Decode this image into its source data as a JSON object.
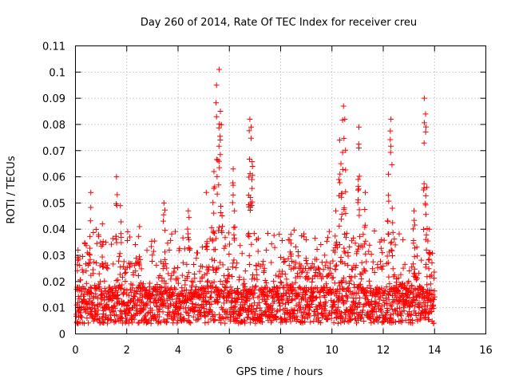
{
  "chart_data": {
    "type": "scatter",
    "title": "Day 260 of 2014, Rate Of TEC Index for receiver creu",
    "xlabel": "GPS time / hours",
    "ylabel": "ROTI / TECUs",
    "xlim": [
      0,
      16
    ],
    "ylim": [
      0,
      0.11
    ],
    "xticks": [
      "0",
      "2",
      "4",
      "6",
      "8",
      "10",
      "12",
      "14",
      "16"
    ],
    "yticks": [
      "0",
      "0.01",
      "0.02",
      "0.03",
      "0.04",
      "0.05",
      "0.06",
      "0.07",
      "0.08",
      "0.09",
      "0.1",
      "0.11"
    ],
    "grid": true,
    "marker": "+",
    "color": "#ff0000",
    "data_x_range": [
      0,
      14
    ],
    "peaks": [
      {
        "x": 0.1,
        "y": 0.032
      },
      {
        "x": 0.6,
        "y": 0.054
      },
      {
        "x": 1.05,
        "y": 0.042
      },
      {
        "x": 1.6,
        "y": 0.06
      },
      {
        "x": 1.75,
        "y": 0.049
      },
      {
        "x": 2.5,
        "y": 0.041
      },
      {
        "x": 3.45,
        "y": 0.05
      },
      {
        "x": 4.4,
        "y": 0.047
      },
      {
        "x": 5.1,
        "y": 0.054
      },
      {
        "x": 5.4,
        "y": 0.062
      },
      {
        "x": 5.5,
        "y": 0.095
      },
      {
        "x": 5.6,
        "y": 0.101
      },
      {
        "x": 5.65,
        "y": 0.085
      },
      {
        "x": 6.15,
        "y": 0.063
      },
      {
        "x": 6.2,
        "y": 0.047
      },
      {
        "x": 6.8,
        "y": 0.082
      },
      {
        "x": 6.85,
        "y": 0.079
      },
      {
        "x": 6.9,
        "y": 0.064
      },
      {
        "x": 6.75,
        "y": 0.053
      },
      {
        "x": 8.4,
        "y": 0.038
      },
      {
        "x": 9.0,
        "y": 0.036
      },
      {
        "x": 10.3,
        "y": 0.074
      },
      {
        "x": 10.35,
        "y": 0.065
      },
      {
        "x": 10.45,
        "y": 0.087
      },
      {
        "x": 10.5,
        "y": 0.082
      },
      {
        "x": 10.15,
        "y": 0.047
      },
      {
        "x": 11.05,
        "y": 0.079
      },
      {
        "x": 11.05,
        "y": 0.071
      },
      {
        "x": 11.3,
        "y": 0.054
      },
      {
        "x": 12.2,
        "y": 0.061
      },
      {
        "x": 12.3,
        "y": 0.082
      },
      {
        "x": 12.35,
        "y": 0.048
      },
      {
        "x": 13.2,
        "y": 0.047
      },
      {
        "x": 13.6,
        "y": 0.09
      },
      {
        "x": 13.65,
        "y": 0.084
      },
      {
        "x": 13.7,
        "y": 0.056
      },
      {
        "x": 13.8,
        "y": 0.04
      }
    ]
  }
}
